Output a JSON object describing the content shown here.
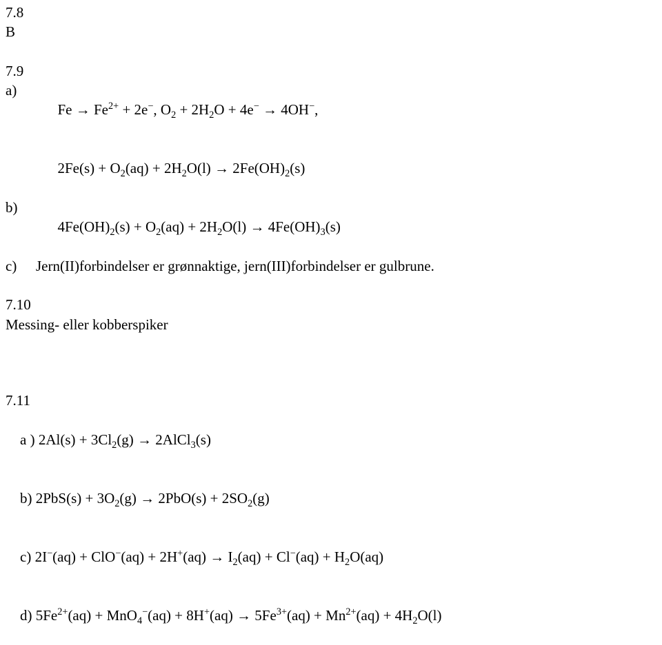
{
  "font": {
    "family": "Times New Roman",
    "base_size_pt": 16,
    "color": "#000000",
    "background": "#ffffff"
  },
  "sec78": {
    "num": "7.8",
    "letter": "B"
  },
  "sec79": {
    "num": "7.9",
    "a": {
      "label": "a)",
      "line1_pre": "Fe → Fe",
      "line1_exp1": "2+",
      "line1_mid1": " + 2e",
      "line1_exp2": "−",
      "line1_mid2": ", O",
      "line1_sub1": "2",
      "line1_mid3": " + 2H",
      "line1_sub2": "2",
      "line1_mid4": "O + 4e",
      "line1_exp3": "−",
      "line1_mid5": " → 4OH",
      "line1_exp4": "−",
      "line1_end": ",",
      "line2_pre": "2Fe(s) + O",
      "line2_sub1": "2",
      "line2_mid1": "(aq) + 2H",
      "line2_sub2": "2",
      "line2_mid2": "O(l) → 2Fe(OH)",
      "line2_sub3": "2",
      "line2_end": "(s)"
    },
    "b": {
      "label": "b)",
      "pre": "4Fe(OH)",
      "sub1": "2",
      "mid1": "(s) + O",
      "sub2": "2",
      "mid2": "(aq) + 2H",
      "sub3": "2",
      "mid3": "O(l) → 4Fe(OH)",
      "sub4": "3",
      "end": "(s)"
    },
    "c": {
      "label": "c)",
      "text": "Jern(II)forbindelser er grønnaktige, jern(III)forbindelser er gulbrune."
    }
  },
  "sec710": {
    "num": "7.10",
    "text": "Messing- eller kobberspiker"
  },
  "sec711": {
    "num": "7.11",
    "a": {
      "label": "a )",
      "pre": " 2Al(s) + 3Cl",
      "sub1": "2",
      "mid1": "(g) → 2AlCl",
      "sub2": "3",
      "end": "(s)"
    },
    "b": {
      "label": "b)",
      "pre": " 2PbS(s) + 3O",
      "sub1": "2",
      "mid1": "(g) → 2PbO(s) + 2SO",
      "sub2": "2",
      "end": "(g)"
    },
    "c": {
      "label": "c)",
      "pre": " 2I",
      "exp1": "−",
      "mid1": "(aq) + ClO",
      "exp2": "−",
      "mid2": "(aq) + 2H",
      "exp3": "+",
      "mid3": "(aq) → I",
      "sub1": "2",
      "mid4": "(aq) + Cl",
      "exp4": "−",
      "mid5": "(aq) + H",
      "sub2": "2",
      "end": "O(aq)"
    },
    "d": {
      "label": "d)",
      "pre": " 5Fe",
      "exp1": "2+",
      "mid1": "(aq) + MnO",
      "sub1": "4",
      "exp2": "−",
      "mid2": "(aq) + 8H",
      "exp3": "+",
      "mid3": "(aq) → 5Fe",
      "exp4": "3+",
      "mid4": "(aq) + Mn",
      "exp5": "2+",
      "mid5": "(aq) + 4H",
      "sub2": "2",
      "end": "O(l)"
    }
  }
}
